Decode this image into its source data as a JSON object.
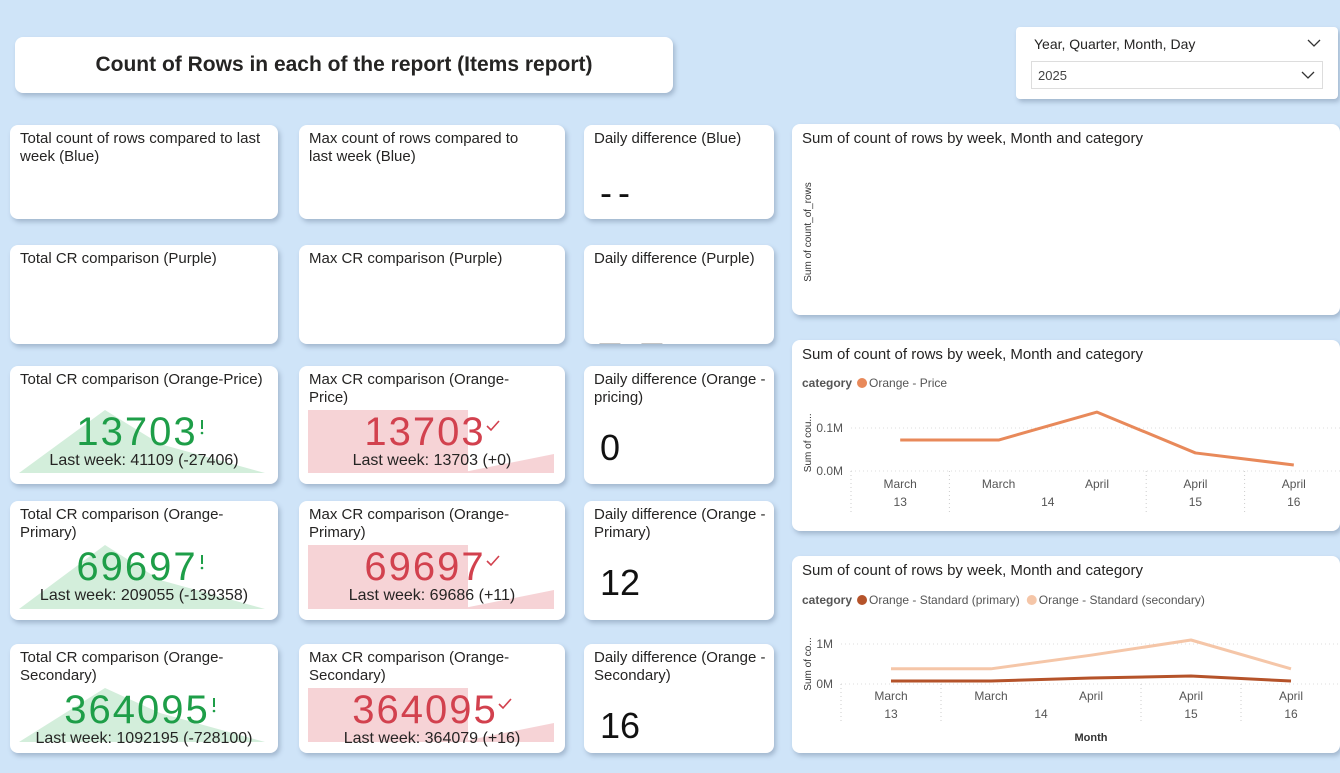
{
  "header": {
    "title": "Count of Rows in each of the report (Items report)"
  },
  "slicer": {
    "label": "Year, Quarter, Month, Day",
    "value": "2025"
  },
  "cards": {
    "total": [
      {
        "title": "Total count of rows compared to last week (Blue)"
      },
      {
        "title": "Total CR comparison (Purple)"
      },
      {
        "title": "Total CR comparison (Orange-Price)",
        "value": 13703,
        "comparison": "Last week: 41109 (-27406)"
      },
      {
        "title": "Total CR comparison (Orange-Primary)",
        "value": 69697,
        "comparison": "Last week: 209055 (-139358)"
      },
      {
        "title": "Total CR comparison (Orange-Secondary)",
        "value": 364095,
        "comparison": "Last week: 1092195 (-728100)"
      }
    ],
    "max": [
      {
        "title": "Max count of rows compared to last week (Blue)"
      },
      {
        "title": "Max CR comparison (Purple)"
      },
      {
        "title": "Max CR comparison (Orange-Price)",
        "value": 13703,
        "comparison": "Last week: 13703 (+0)"
      },
      {
        "title": "Max CR comparison (Orange-Primary)",
        "value": 69697,
        "comparison": "Last week: 69686 (+11)"
      },
      {
        "title": "Max CR comparison (Orange-Secondary)",
        "value": 364095,
        "comparison": "Last week: 364079 (+16)"
      }
    ],
    "daily": [
      {
        "title": "Daily difference (Blue)",
        "value": "--"
      },
      {
        "title": "Daily difference (Purple)",
        "value": "_ _"
      },
      {
        "title": "Daily difference (Orange - pricing)",
        "value": 0
      },
      {
        "title": "Daily difference (Orange - Primary)",
        "value": 12
      },
      {
        "title": "Daily difference (Orange - Secondary)",
        "value": 16
      }
    ]
  },
  "chart_data": [
    {
      "type": "line",
      "title": "Sum of count of rows by week, Month and category",
      "y_label": "Sum of count_of_rows"
    },
    {
      "type": "line",
      "title": "Sum of count of rows by week, Month and category",
      "legend_title": "category",
      "y_label": "Sum of cou...",
      "categories": [
        "March",
        "March",
        "April",
        "April",
        "April"
      ],
      "weeks": [
        "13",
        "14",
        "14",
        "15",
        "16"
      ],
      "series": [
        {
          "name": "Orange - Price",
          "color": "#e8895a",
          "values": [
            72000,
            72000,
            137000,
            42000,
            14000
          ]
        }
      ],
      "ylim": [
        0,
        150000
      ],
      "yticks": [
        {
          "value": 0,
          "label": "0.0M"
        },
        {
          "value": 100000,
          "label": "0.1M"
        }
      ],
      "grid": true
    },
    {
      "type": "line",
      "title": "Sum of count of rows by week, Month and category",
      "legend_title": "category",
      "y_label": "Sum of co...",
      "x_label": "Month",
      "categories": [
        "March",
        "March",
        "April",
        "April",
        "April"
      ],
      "weeks": [
        "13",
        "14",
        "14",
        "15",
        "16"
      ],
      "series": [
        {
          "name": "Orange - Standard (primary)",
          "color": "#b5532a",
          "values": [
            75000,
            75000,
            150000,
            200000,
            75000
          ]
        },
        {
          "name": "Orange - Standard (secondary)",
          "color": "#f5c6a8",
          "values": [
            380000,
            380000,
            720000,
            1100000,
            380000
          ]
        }
      ],
      "ylim": [
        0,
        1200000
      ],
      "yticks": [
        {
          "value": 0,
          "label": "0M"
        },
        {
          "value": 1000000,
          "label": "1M"
        }
      ],
      "grid": true
    }
  ]
}
